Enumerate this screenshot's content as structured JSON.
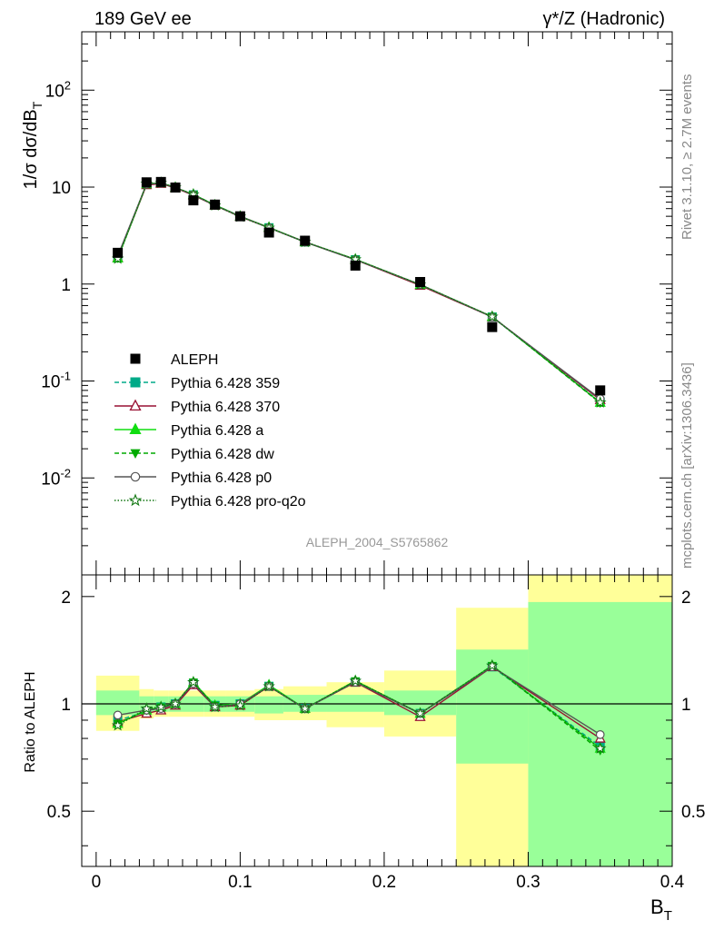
{
  "header": {
    "left": "189 GeV ee",
    "right": "γ*/Z (Hadronic)"
  },
  "side_labels": {
    "rivet": "Rivet 3.1.10, ≥ 2.7M events",
    "mcplots": "mcplots.cern.ch [arXiv:1306.3436]"
  },
  "watermark": "ALEPH_2004_S5765862",
  "axes": {
    "main_ylabel_prefix": "1/σ  dσ/dB",
    "main_ylabel_sub": "T",
    "ratio_ylabel": "Ratio to ALEPH",
    "xlabel_main": "B",
    "xlabel_sub": "T"
  },
  "chart_data": {
    "type": "line",
    "x_bin_edges": [
      0.0,
      0.03,
      0.04,
      0.05,
      0.06,
      0.075,
      0.09,
      0.11,
      0.13,
      0.16,
      0.2,
      0.25,
      0.3,
      0.4
    ],
    "x": [
      0.015,
      0.035,
      0.045,
      0.055,
      0.0675,
      0.0825,
      0.1,
      0.12,
      0.145,
      0.18,
      0.225,
      0.275,
      0.35
    ],
    "xlim": [
      -0.01,
      0.4
    ],
    "main": {
      "yscale": "log",
      "ylim": [
        0.001,
        400
      ],
      "y_tick_labels": [
        "10^-2",
        "10^-1",
        "1",
        "10",
        "10^2"
      ]
    },
    "ratio": {
      "ylim": [
        0.35,
        2.3
      ],
      "y_tick_labels": [
        "0.5",
        "1",
        "2"
      ]
    },
    "x_tick_labels": [
      "0",
      "0.1",
      "0.2",
      "0.3",
      "0.4"
    ],
    "reference": {
      "name": "ALEPH",
      "values": [
        2.1,
        11.2,
        11.3,
        9.9,
        7.3,
        6.6,
        5.0,
        3.4,
        2.8,
        1.55,
        1.05,
        0.36,
        0.08
      ],
      "band_stat_lo": [
        0.93,
        0.95,
        0.95,
        0.95,
        0.95,
        0.95,
        0.95,
        0.94,
        0.95,
        0.95,
        0.93,
        0.68,
        0.35
      ],
      "band_stat_hi": [
        1.09,
        1.05,
        1.05,
        1.05,
        1.05,
        1.05,
        1.05,
        1.05,
        1.06,
        1.06,
        1.09,
        1.42,
        1.93
      ],
      "band_tot_lo": [
        0.84,
        0.91,
        0.92,
        0.92,
        0.92,
        0.92,
        0.92,
        0.9,
        0.9,
        0.86,
        0.81,
        0.35,
        0.35
      ],
      "band_tot_hi": [
        1.2,
        1.1,
        1.09,
        1.09,
        1.09,
        1.09,
        1.09,
        1.1,
        1.12,
        1.15,
        1.24,
        1.86,
        2.3
      ]
    },
    "series": [
      {
        "name": "Pythia 6.428 359",
        "color": "#00aa88",
        "dash": "5,3",
        "marker": "square",
        "ratio": [
          0.9,
          0.95,
          0.98,
          1.0,
          1.14,
          0.99,
          1.0,
          1.12,
          0.97,
          1.15,
          0.94,
          1.27,
          0.76
        ]
      },
      {
        "name": "Pythia 6.428 370",
        "color": "#991133",
        "dash": "",
        "marker": "triangle-open",
        "ratio": [
          0.89,
          0.94,
          0.96,
          0.99,
          1.13,
          0.98,
          0.99,
          1.12,
          0.97,
          1.15,
          0.92,
          1.27,
          0.8
        ]
      },
      {
        "name": "Pythia 6.428 a",
        "color": "#11dd11",
        "dash": "",
        "marker": "triangle",
        "ratio": [
          0.88,
          0.96,
          0.98,
          1.0,
          1.15,
          0.99,
          1.0,
          1.13,
          0.97,
          1.16,
          0.94,
          1.28,
          0.75
        ]
      },
      {
        "name": "Pythia 6.428 dw",
        "color": "#00aa00",
        "dash": "5,3",
        "marker": "triangle-down",
        "ratio": [
          0.88,
          0.96,
          0.98,
          1.0,
          1.15,
          0.99,
          1.0,
          1.12,
          0.97,
          1.16,
          0.94,
          1.28,
          0.74
        ]
      },
      {
        "name": "Pythia 6.428 p0",
        "color": "#555555",
        "dash": "",
        "marker": "circle-open",
        "ratio": [
          0.93,
          0.96,
          0.97,
          1.0,
          1.14,
          0.98,
          1.0,
          1.12,
          0.97,
          1.15,
          0.94,
          1.27,
          0.82
        ]
      },
      {
        "name": "Pythia 6.428 pro-q2o",
        "color": "#117711",
        "dash": "1.5,2",
        "marker": "star",
        "ratio": [
          0.87,
          0.97,
          0.98,
          1.0,
          1.15,
          0.98,
          0.99,
          1.12,
          0.97,
          1.16,
          0.94,
          1.28,
          0.75
        ]
      }
    ]
  }
}
